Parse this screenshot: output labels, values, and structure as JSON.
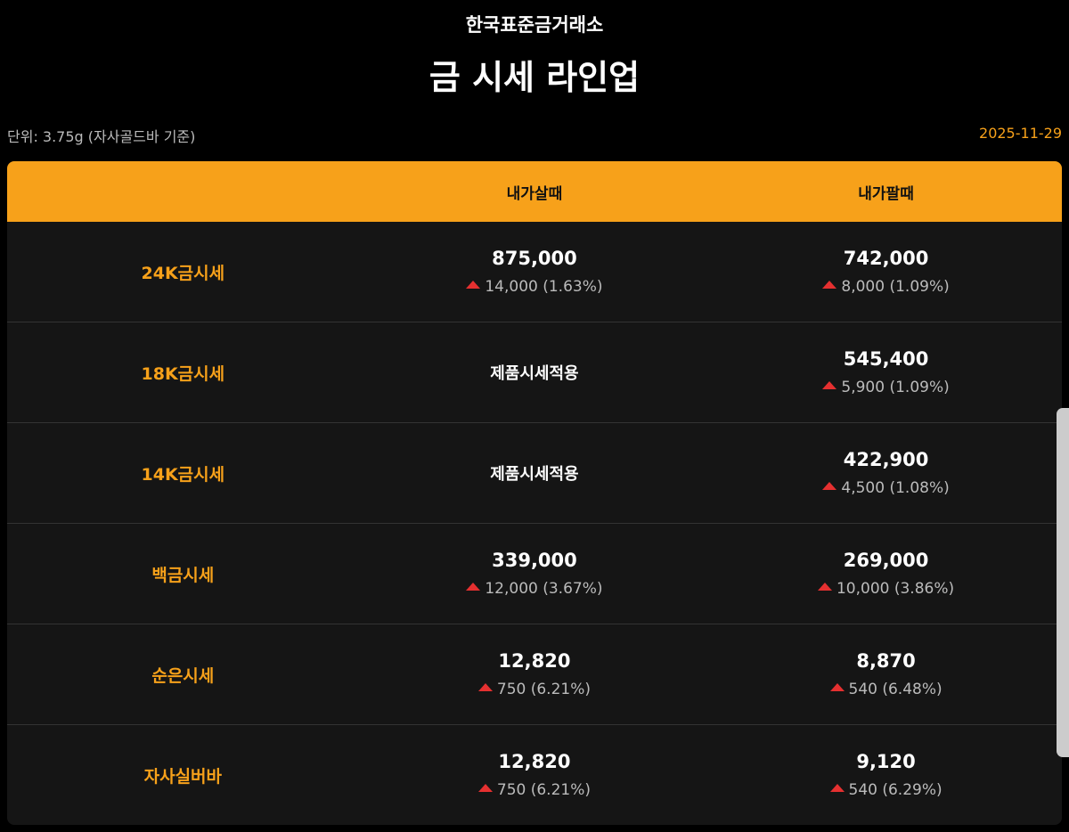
{
  "header": {
    "subtitle": "한국표준금거래소",
    "title": "금 시세 라인업",
    "unit": "단위: 3.75g (자사골드바 기준)",
    "date": "2025-11-29"
  },
  "colors": {
    "accent": "#f7a11a",
    "up": "#e53030"
  },
  "table": {
    "columns": [
      "",
      "내가살때",
      "내가팔때"
    ],
    "rows": [
      {
        "label": "24K금시세",
        "buy": {
          "price": "875,000",
          "change": "14,000 (1.63%)",
          "dir": "up"
        },
        "sell": {
          "price": "742,000",
          "change": "8,000 (1.09%)",
          "dir": "up"
        }
      },
      {
        "label": "18K금시세",
        "buy": {
          "text": "제품시세적용"
        },
        "sell": {
          "price": "545,400",
          "change": "5,900 (1.09%)",
          "dir": "up"
        }
      },
      {
        "label": "14K금시세",
        "buy": {
          "text": "제품시세적용"
        },
        "sell": {
          "price": "422,900",
          "change": "4,500 (1.08%)",
          "dir": "up"
        }
      },
      {
        "label": "백금시세",
        "buy": {
          "price": "339,000",
          "change": "12,000 (3.67%)",
          "dir": "up"
        },
        "sell": {
          "price": "269,000",
          "change": "10,000 (3.86%)",
          "dir": "up"
        }
      },
      {
        "label": "순은시세",
        "buy": {
          "price": "12,820",
          "change": "750 (6.21%)",
          "dir": "up"
        },
        "sell": {
          "price": "8,870",
          "change": "540 (6.48%)",
          "dir": "up"
        }
      },
      {
        "label": "자사실버바",
        "buy": {
          "price": "12,820",
          "change": "750 (6.21%)",
          "dir": "up"
        },
        "sell": {
          "price": "9,120",
          "change": "540 (6.29%)",
          "dir": "up"
        }
      }
    ]
  }
}
